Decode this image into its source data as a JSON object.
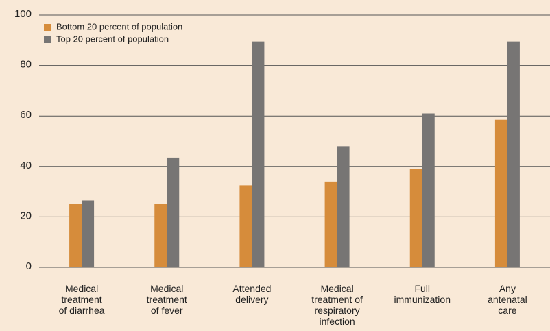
{
  "chart_data": {
    "type": "bar",
    "categories": [
      "Medical\ntreatment\nof diarrhea",
      "Medical\ntreatment\nof fever",
      "Attended\ndelivery",
      "Medical\ntreatment of\nrespiratory\ninfection",
      "Full\nimmunization",
      "Any\nantenatal\ncare"
    ],
    "series": [
      {
        "name": "Bottom 20 percent of population",
        "color": "#d68c3b",
        "values": [
          25,
          25,
          32.5,
          34,
          39,
          58.5
        ]
      },
      {
        "name": "Top 20 percent of population",
        "color": "#777574",
        "values": [
          26.5,
          43.5,
          89.5,
          48,
          61,
          89.5
        ]
      }
    ],
    "ylim": [
      0,
      100
    ],
    "yticks": [
      0,
      20,
      40,
      60,
      80,
      100
    ],
    "grid": true,
    "legend": "upper left"
  }
}
